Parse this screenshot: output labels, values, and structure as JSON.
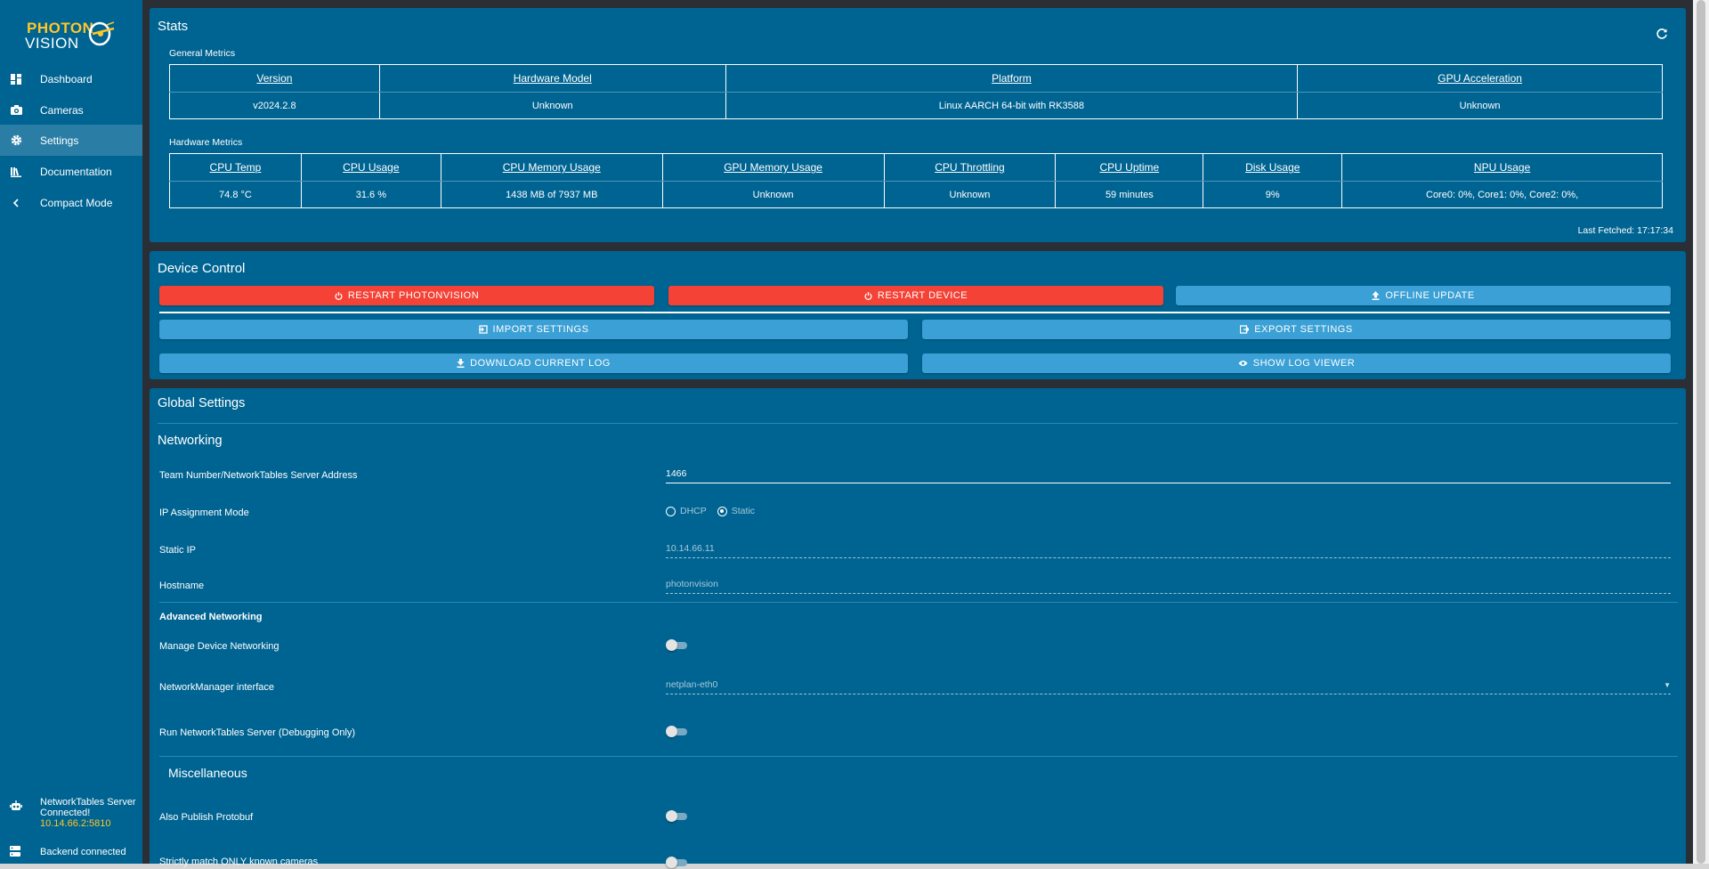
{
  "brand": {
    "line1": "PHOTON",
    "line2": "VISION"
  },
  "sidebar": {
    "items": [
      {
        "label": "Dashboard",
        "icon": "dashboard-icon"
      },
      {
        "label": "Cameras",
        "icon": "camera-icon"
      },
      {
        "label": "Settings",
        "icon": "gear-icon",
        "active": true
      },
      {
        "label": "Documentation",
        "icon": "bookshelf-icon"
      },
      {
        "label": "Compact Mode",
        "icon": "chevron-left-icon"
      }
    ],
    "nt_status": {
      "line1": "NetworkTables Server",
      "line2": "Connected!",
      "ip": "10.14.66.2:5810"
    },
    "backend_status": "Backend connected"
  },
  "stats": {
    "title": "Stats",
    "general_label": "General Metrics",
    "general_headers": [
      "Version",
      "Hardware Model",
      "Platform",
      "GPU Acceleration"
    ],
    "general_values": [
      "v2024.2.8",
      "Unknown",
      "Linux AARCH 64-bit with RK3588",
      "Unknown"
    ],
    "hardware_label": "Hardware Metrics",
    "hardware_headers": [
      "CPU Temp",
      "CPU Usage",
      "CPU Memory Usage",
      "GPU Memory Usage",
      "CPU Throttling",
      "CPU Uptime",
      "Disk Usage",
      "NPU Usage"
    ],
    "hardware_values": [
      "74.8 °C",
      "31.6 %",
      "1438 MB of 7937 MB",
      "Unknown",
      "Unknown",
      "59 minutes",
      "9%",
      "Core0: 0%, Core1: 0%, Core2: 0%,"
    ],
    "last_fetched": "Last Fetched: 17:17:34"
  },
  "device_control": {
    "title": "Device Control",
    "restart_photonvision": "RESTART PHOTONVISION",
    "restart_device": "RESTART DEVICE",
    "offline_update": "OFFLINE UPDATE",
    "import_settings": "IMPORT SETTINGS",
    "export_settings": "EXPORT SETTINGS",
    "download_log": "DOWNLOAD CURRENT LOG",
    "show_log_viewer": "SHOW LOG VIEWER"
  },
  "global_settings": {
    "title": "Global Settings",
    "networking_title": "Networking",
    "team_number_label": "Team Number/NetworkTables Server Address",
    "team_number_value": "1466",
    "ip_mode_label": "IP Assignment Mode",
    "ip_mode_options": [
      "DHCP",
      "Static"
    ],
    "ip_mode_selected": "Static",
    "static_ip_label": "Static IP",
    "static_ip_value": "10.14.66.11",
    "hostname_label": "Hostname",
    "hostname_value": "photonvision",
    "advanced_title": "Advanced Networking",
    "manage_networking_label": "Manage Device Networking",
    "manage_networking_on": false,
    "nm_interface_label": "NetworkManager interface",
    "nm_interface_value": "netplan-eth0",
    "run_nt_server_label": "Run NetworkTables Server (Debugging Only)",
    "run_nt_server_on": false,
    "misc_title": "Miscellaneous",
    "publish_protobuf_label": "Also Publish Protobuf",
    "publish_protobuf_on": false,
    "strict_match_label": "Strictly match ONLY known cameras",
    "strict_match_on": false
  },
  "colors": {
    "sidebar": "#006492",
    "card": "#006492",
    "accent_yellow": "#ffc629",
    "button_blue": "#3aa0d5",
    "button_red": "#f44336"
  }
}
